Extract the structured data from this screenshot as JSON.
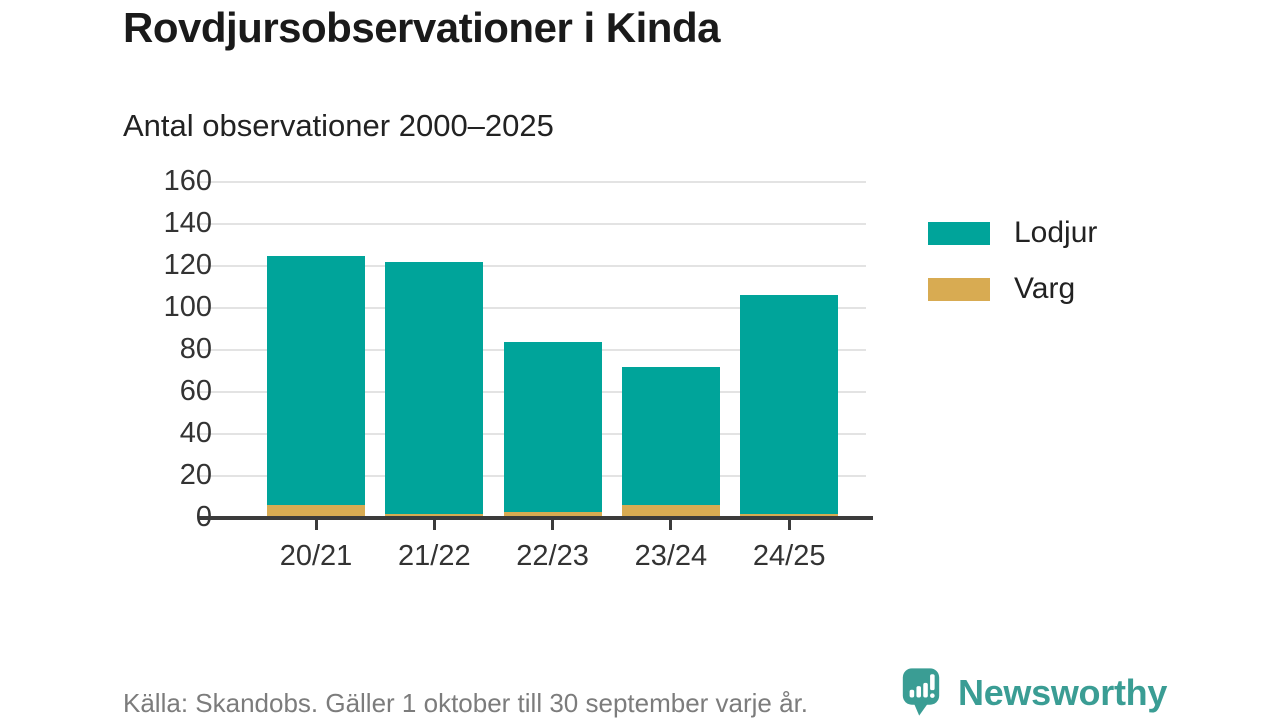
{
  "header": {
    "title": "Rovdjursobservationer i Kinda",
    "subtitle": "Antal observationer 2000–2025"
  },
  "chart_data": {
    "type": "bar",
    "stacked": true,
    "title": "Rovdjursobservationer i Kinda",
    "subtitle": "Antal observationer 2000–2025",
    "categories": [
      "20/21",
      "21/22",
      "22/23",
      "23/24",
      "24/25"
    ],
    "series": [
      {
        "name": "Lodjur",
        "color": "#00a49a",
        "values": [
          119,
          120,
          81,
          66,
          104
        ]
      },
      {
        "name": "Varg",
        "color": "#d8ab52",
        "values": [
          6,
          2,
          3,
          6,
          2
        ]
      }
    ],
    "stack_order_bottom_to_top": [
      "Varg",
      "Lodjur"
    ],
    "totals": [
      125,
      122,
      84,
      72,
      106
    ],
    "xlabel": "",
    "ylabel": "",
    "ylim": [
      0,
      160
    ],
    "yticks": [
      0,
      20,
      40,
      60,
      80,
      100,
      120,
      140,
      160
    ],
    "grid": true,
    "legend_position": "right"
  },
  "footer": {
    "source_note": "Källa: Skandobs. Gäller 1 oktober till 30 september varje år.",
    "brand": "Newsworthy"
  },
  "colors": {
    "background": "#ffffff",
    "axis": "#3b3b3b",
    "grid": "#e3e3e3",
    "title_text": "#1a1a1a",
    "tick_text": "#333333",
    "muted_text": "#7c7c7c",
    "brand_teal": "#3a9d94"
  }
}
